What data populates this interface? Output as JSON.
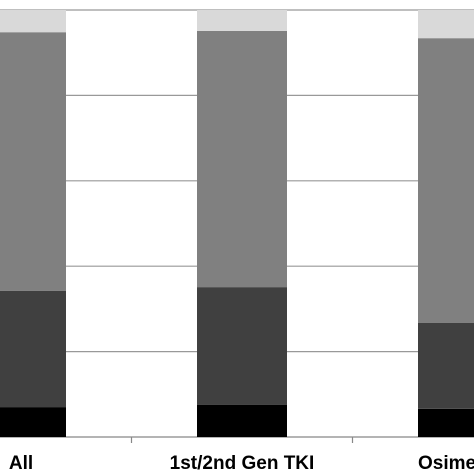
{
  "chart_data": {
    "type": "stacked_bar",
    "categories": [
      "All",
      "1st/2nd Gen TKI",
      "Osimer"
    ],
    "series": [
      {
        "color": "#000000",
        "values": [
          7.0,
          7.5,
          6.6
        ]
      },
      {
        "color": "#404040",
        "values": [
          27.2,
          27.6,
          20.1
        ]
      },
      {
        "color": "#808080",
        "values": [
          60.6,
          60.0,
          66.7
        ]
      },
      {
        "color": "#d9d9d9",
        "values": [
          5.2,
          4.9,
          6.6
        ]
      }
    ],
    "ylim": [
      0,
      100
    ],
    "yticks": [
      0,
      20,
      40,
      60,
      80,
      100
    ],
    "grid": true
  }
}
